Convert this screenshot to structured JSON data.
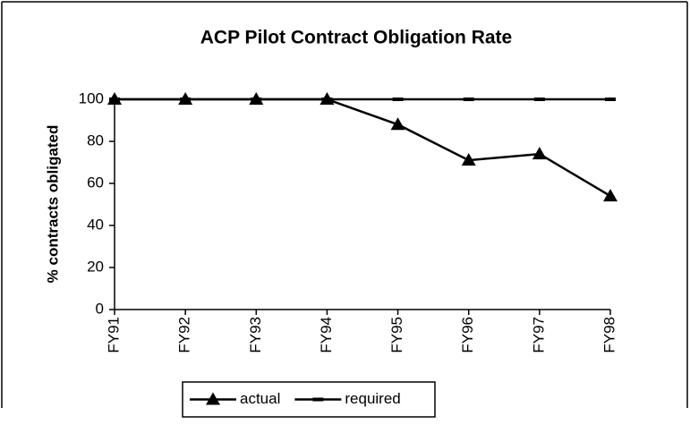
{
  "chart_data": {
    "type": "line",
    "title": "ACP Pilot Contract Obligation Rate",
    "y_label": "% contracts obligated",
    "categories": [
      "FY91",
      "FY92",
      "FY93",
      "FY94",
      "FY95",
      "FY96",
      "FY97",
      "FY98"
    ],
    "series": [
      {
        "name": "actual",
        "color": "#000000",
        "marker": "triangle",
        "values": [
          100,
          100,
          100,
          100,
          88,
          71,
          74,
          54
        ]
      },
      {
        "name": "required",
        "color": "#000000",
        "marker": "dash",
        "values": [
          100,
          100,
          100,
          100,
          100,
          100,
          100,
          100
        ]
      }
    ],
    "ylim": [
      0,
      100
    ],
    "yticks": [
      0,
      20,
      40,
      60,
      80,
      100
    ],
    "grid": false,
    "legend": "bottom"
  }
}
